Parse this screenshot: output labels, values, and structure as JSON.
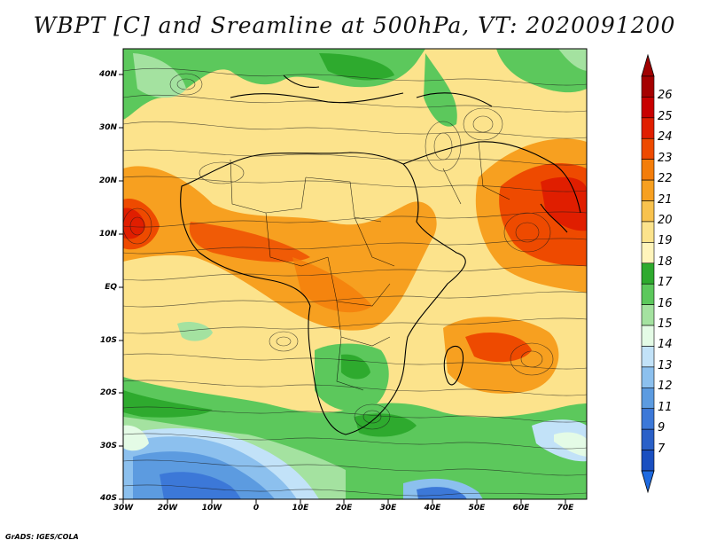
{
  "title": "WBPT [C] and Sreamline at 500hPa, VT: 2020091200",
  "credit": "GrADS: IGES/COLA",
  "map": {
    "lat_labels": [
      "40N",
      "30N",
      "20N",
      "10N",
      "EQ",
      "10S",
      "20S",
      "30S",
      "40S"
    ],
    "lon_labels": [
      "30W",
      "20W",
      "10W",
      "0",
      "10E",
      "20E",
      "30E",
      "40E",
      "50E",
      "60E",
      "70E"
    ],
    "lat_range": [
      -40,
      45
    ],
    "lon_range": [
      -30,
      75
    ]
  },
  "colorbar": {
    "labels": [
      "26",
      "25",
      "24",
      "23",
      "22",
      "21",
      "20",
      "19",
      "18",
      "17",
      "16",
      "15",
      "14",
      "13",
      "12",
      "11",
      "9",
      "7"
    ],
    "colors": [
      "#a50000",
      "#c80000",
      "#e01e00",
      "#ee4a00",
      "#f47d0a",
      "#f7a020",
      "#f8c24e",
      "#fce38c",
      "#fff4bb",
      "#2eaa2e",
      "#5cc85c",
      "#a4e2a0",
      "#e4fbe6",
      "#c2e2f8",
      "#8cc0ee",
      "#5c9be0",
      "#3c78d8",
      "#2a60c8",
      "#1a4fc0"
    ],
    "arrow_max": "#a00000",
    "arrow_min": "#1e6ae0"
  }
}
